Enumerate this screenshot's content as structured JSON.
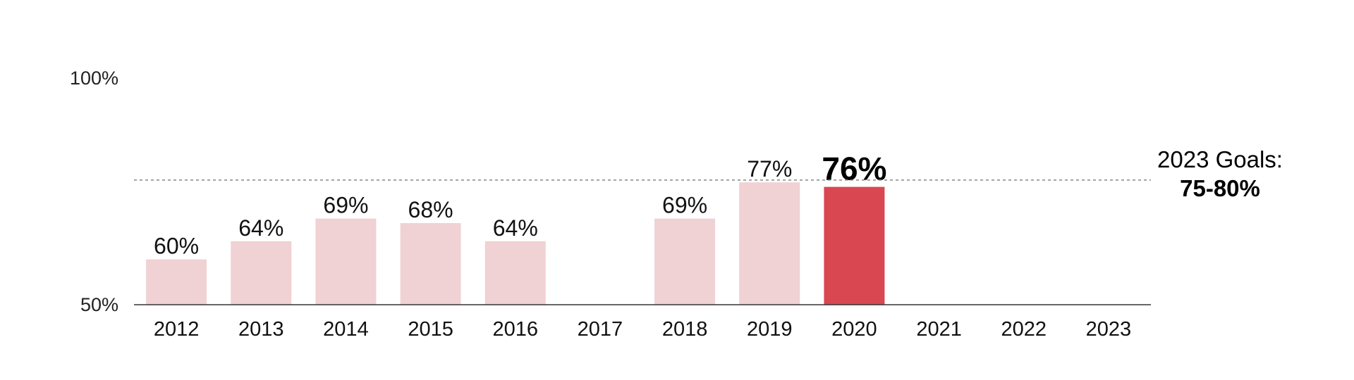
{
  "chart_data": {
    "type": "bar",
    "categories": [
      "2012",
      "2013",
      "2014",
      "2015",
      "2016",
      "2017",
      "2018",
      "2019",
      "2020",
      "2021",
      "2022",
      "2023"
    ],
    "values": [
      60,
      64,
      69,
      68,
      64,
      null,
      69,
      77,
      76,
      null,
      null,
      null
    ],
    "data_labels": [
      "60%",
      "64%",
      "69%",
      "68%",
      "64%",
      "",
      "69%",
      "77%",
      "76%",
      "",
      "",
      ""
    ],
    "highlight_category": "2020",
    "ylim": [
      50,
      100
    ],
    "y_ticks": [
      {
        "value": 50,
        "label": "50%"
      },
      {
        "value": 100,
        "label": "100%"
      }
    ],
    "title": "",
    "xlabel": "",
    "ylabel": "",
    "grid": false,
    "reference_line": {
      "value": 77.5,
      "style": "dashed",
      "label_line1": "2023 Goals:",
      "label_line2": "75-80%"
    },
    "colors": {
      "bar": "#f0d1d4",
      "highlight": "#d94751",
      "axis": "#333333",
      "reference": "#888888"
    }
  }
}
